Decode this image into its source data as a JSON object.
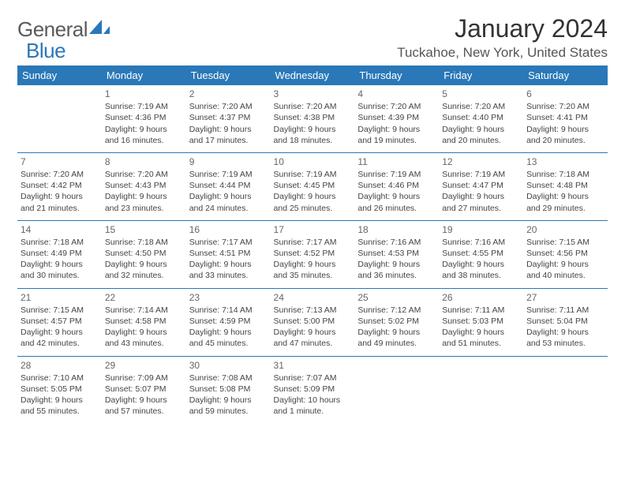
{
  "logo": {
    "text1": "General",
    "text2": "Blue"
  },
  "title": "January 2024",
  "location": "Tuckahoe, New York, United States",
  "colors": {
    "accent": "#2a78b8",
    "headerText": "#ffffff",
    "bodyText": "#444444",
    "titleText": "#333333",
    "rowBorder": "#2a78b8",
    "background": "#ffffff"
  },
  "typography": {
    "title_fontsize": 32,
    "location_fontsize": 17,
    "dayheader_fontsize": 13,
    "cell_fontsize": 10.5,
    "logo_fontsize": 26
  },
  "day_headers": [
    "Sunday",
    "Monday",
    "Tuesday",
    "Wednesday",
    "Thursday",
    "Friday",
    "Saturday"
  ],
  "weeks": [
    [
      {
        "num": "",
        "lines": []
      },
      {
        "num": "1",
        "lines": [
          "Sunrise: 7:19 AM",
          "Sunset: 4:36 PM",
          "Daylight: 9 hours and 16 minutes."
        ]
      },
      {
        "num": "2",
        "lines": [
          "Sunrise: 7:20 AM",
          "Sunset: 4:37 PM",
          "Daylight: 9 hours and 17 minutes."
        ]
      },
      {
        "num": "3",
        "lines": [
          "Sunrise: 7:20 AM",
          "Sunset: 4:38 PM",
          "Daylight: 9 hours and 18 minutes."
        ]
      },
      {
        "num": "4",
        "lines": [
          "Sunrise: 7:20 AM",
          "Sunset: 4:39 PM",
          "Daylight: 9 hours and 19 minutes."
        ]
      },
      {
        "num": "5",
        "lines": [
          "Sunrise: 7:20 AM",
          "Sunset: 4:40 PM",
          "Daylight: 9 hours and 20 minutes."
        ]
      },
      {
        "num": "6",
        "lines": [
          "Sunrise: 7:20 AM",
          "Sunset: 4:41 PM",
          "Daylight: 9 hours and 20 minutes."
        ]
      }
    ],
    [
      {
        "num": "7",
        "lines": [
          "Sunrise: 7:20 AM",
          "Sunset: 4:42 PM",
          "Daylight: 9 hours and 21 minutes."
        ]
      },
      {
        "num": "8",
        "lines": [
          "Sunrise: 7:20 AM",
          "Sunset: 4:43 PM",
          "Daylight: 9 hours and 23 minutes."
        ]
      },
      {
        "num": "9",
        "lines": [
          "Sunrise: 7:19 AM",
          "Sunset: 4:44 PM",
          "Daylight: 9 hours and 24 minutes."
        ]
      },
      {
        "num": "10",
        "lines": [
          "Sunrise: 7:19 AM",
          "Sunset: 4:45 PM",
          "Daylight: 9 hours and 25 minutes."
        ]
      },
      {
        "num": "11",
        "lines": [
          "Sunrise: 7:19 AM",
          "Sunset: 4:46 PM",
          "Daylight: 9 hours and 26 minutes."
        ]
      },
      {
        "num": "12",
        "lines": [
          "Sunrise: 7:19 AM",
          "Sunset: 4:47 PM",
          "Daylight: 9 hours and 27 minutes."
        ]
      },
      {
        "num": "13",
        "lines": [
          "Sunrise: 7:18 AM",
          "Sunset: 4:48 PM",
          "Daylight: 9 hours and 29 minutes."
        ]
      }
    ],
    [
      {
        "num": "14",
        "lines": [
          "Sunrise: 7:18 AM",
          "Sunset: 4:49 PM",
          "Daylight: 9 hours and 30 minutes."
        ]
      },
      {
        "num": "15",
        "lines": [
          "Sunrise: 7:18 AM",
          "Sunset: 4:50 PM",
          "Daylight: 9 hours and 32 minutes."
        ]
      },
      {
        "num": "16",
        "lines": [
          "Sunrise: 7:17 AM",
          "Sunset: 4:51 PM",
          "Daylight: 9 hours and 33 minutes."
        ]
      },
      {
        "num": "17",
        "lines": [
          "Sunrise: 7:17 AM",
          "Sunset: 4:52 PM",
          "Daylight: 9 hours and 35 minutes."
        ]
      },
      {
        "num": "18",
        "lines": [
          "Sunrise: 7:16 AM",
          "Sunset: 4:53 PM",
          "Daylight: 9 hours and 36 minutes."
        ]
      },
      {
        "num": "19",
        "lines": [
          "Sunrise: 7:16 AM",
          "Sunset: 4:55 PM",
          "Daylight: 9 hours and 38 minutes."
        ]
      },
      {
        "num": "20",
        "lines": [
          "Sunrise: 7:15 AM",
          "Sunset: 4:56 PM",
          "Daylight: 9 hours and 40 minutes."
        ]
      }
    ],
    [
      {
        "num": "21",
        "lines": [
          "Sunrise: 7:15 AM",
          "Sunset: 4:57 PM",
          "Daylight: 9 hours and 42 minutes."
        ]
      },
      {
        "num": "22",
        "lines": [
          "Sunrise: 7:14 AM",
          "Sunset: 4:58 PM",
          "Daylight: 9 hours and 43 minutes."
        ]
      },
      {
        "num": "23",
        "lines": [
          "Sunrise: 7:14 AM",
          "Sunset: 4:59 PM",
          "Daylight: 9 hours and 45 minutes."
        ]
      },
      {
        "num": "24",
        "lines": [
          "Sunrise: 7:13 AM",
          "Sunset: 5:00 PM",
          "Daylight: 9 hours and 47 minutes."
        ]
      },
      {
        "num": "25",
        "lines": [
          "Sunrise: 7:12 AM",
          "Sunset: 5:02 PM",
          "Daylight: 9 hours and 49 minutes."
        ]
      },
      {
        "num": "26",
        "lines": [
          "Sunrise: 7:11 AM",
          "Sunset: 5:03 PM",
          "Daylight: 9 hours and 51 minutes."
        ]
      },
      {
        "num": "27",
        "lines": [
          "Sunrise: 7:11 AM",
          "Sunset: 5:04 PM",
          "Daylight: 9 hours and 53 minutes."
        ]
      }
    ],
    [
      {
        "num": "28",
        "lines": [
          "Sunrise: 7:10 AM",
          "Sunset: 5:05 PM",
          "Daylight: 9 hours and 55 minutes."
        ]
      },
      {
        "num": "29",
        "lines": [
          "Sunrise: 7:09 AM",
          "Sunset: 5:07 PM",
          "Daylight: 9 hours and 57 minutes."
        ]
      },
      {
        "num": "30",
        "lines": [
          "Sunrise: 7:08 AM",
          "Sunset: 5:08 PM",
          "Daylight: 9 hours and 59 minutes."
        ]
      },
      {
        "num": "31",
        "lines": [
          "Sunrise: 7:07 AM",
          "Sunset: 5:09 PM",
          "Daylight: 10 hours and 1 minute."
        ]
      },
      {
        "num": "",
        "lines": []
      },
      {
        "num": "",
        "lines": []
      },
      {
        "num": "",
        "lines": []
      }
    ]
  ]
}
